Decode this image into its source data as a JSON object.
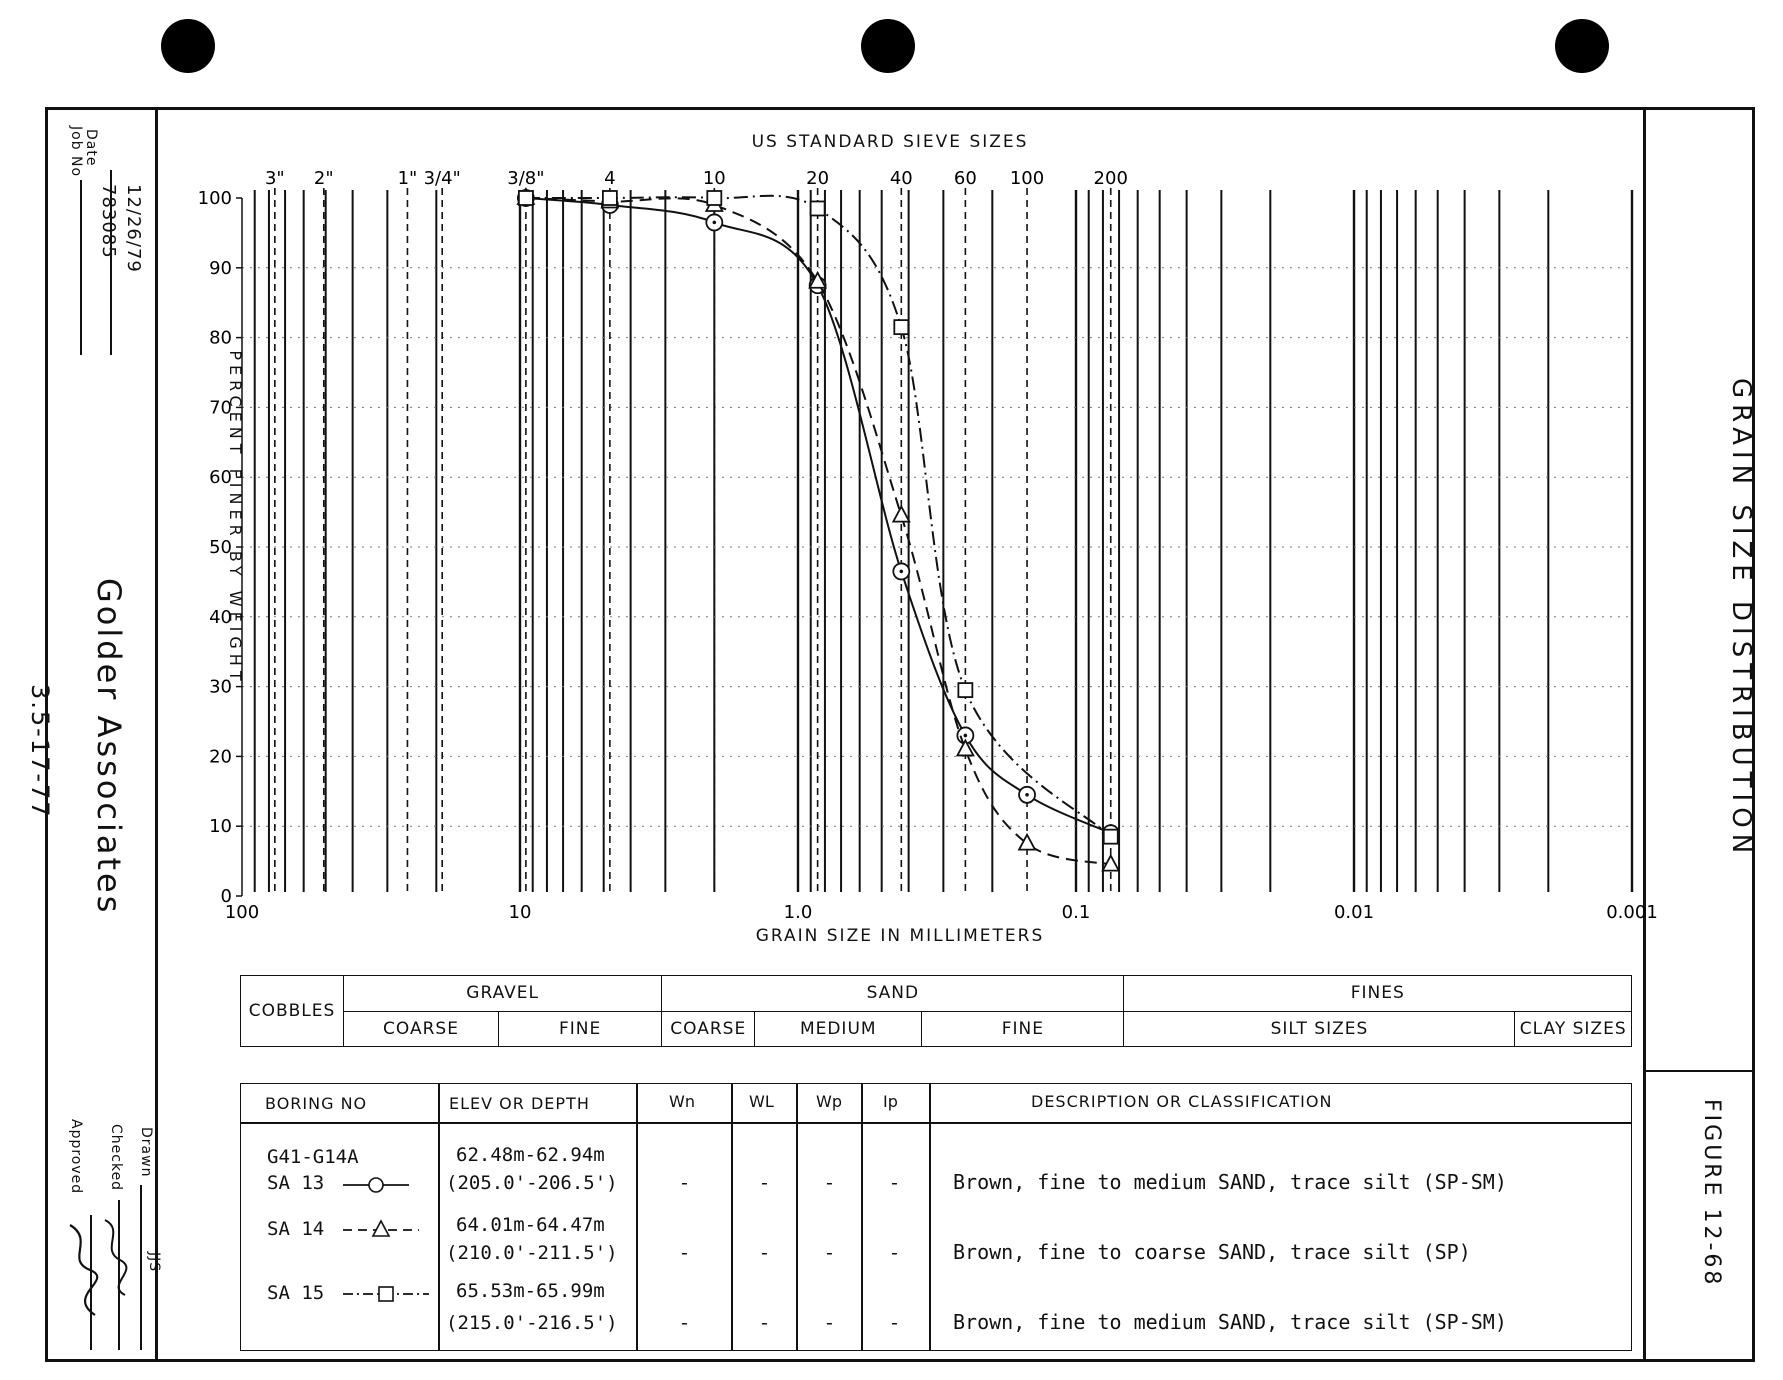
{
  "chart_data": {
    "type": "line",
    "title": "GRAIN SIZE DISTRIBUTION",
    "xlabel": "GRAIN SIZE IN MILLIMETERS",
    "ylabel": "PERCENT FINER BY WEIGHT",
    "top_axis_label": "US STANDARD SIEVE SIZES",
    "x_scale": "log",
    "x_reversed": true,
    "xlim": [
      100,
      0.001
    ],
    "ylim": [
      0,
      100
    ],
    "x_tick_labels": [
      "100",
      "10",
      "1.0",
      "0.1",
      "0.01",
      "0.001"
    ],
    "x_tick_values": [
      100,
      10,
      1,
      0.1,
      0.01,
      0.001
    ],
    "y_tick_labels": [
      "0",
      "10",
      "20",
      "30",
      "40",
      "50",
      "60",
      "70",
      "80",
      "90",
      "100"
    ],
    "sieve_labels": [
      {
        "label": "3\"",
        "mm": 76.2
      },
      {
        "label": "2\"",
        "mm": 50.8
      },
      {
        "label": "1\"",
        "mm": 25.4
      },
      {
        "label": "3/4\"",
        "mm": 19.05
      },
      {
        "label": "3/8\"",
        "mm": 9.525
      },
      {
        "label": "4",
        "mm": 4.75
      },
      {
        "label": "10",
        "mm": 2.0
      },
      {
        "label": "20",
        "mm": 0.85
      },
      {
        "label": "40",
        "mm": 0.425
      },
      {
        "label": "60",
        "mm": 0.25
      },
      {
        "label": "100",
        "mm": 0.15
      },
      {
        "label": "200",
        "mm": 0.075
      }
    ],
    "series": [
      {
        "name": "SA 13",
        "marker": "circle",
        "line": "solid",
        "x": [
          9.525,
          4.75,
          2.0,
          0.85,
          0.425,
          0.25,
          0.15,
          0.075
        ],
        "y": [
          100,
          99,
          96.5,
          87.5,
          46.5,
          23,
          14.5,
          9
        ]
      },
      {
        "name": "SA 14",
        "marker": "triangle",
        "line": "dashed",
        "x": [
          9.525,
          4.75,
          2.0,
          0.85,
          0.425,
          0.25,
          0.15,
          0.075
        ],
        "y": [
          100,
          99.5,
          99,
          88,
          54.5,
          21,
          7.5,
          4.5
        ]
      },
      {
        "name": "SA 15",
        "marker": "square",
        "line": "dash-dot",
        "x": [
          9.525,
          4.75,
          2.0,
          0.85,
          0.425,
          0.25,
          0.075
        ],
        "y": [
          100,
          100,
          100,
          98.5,
          81.5,
          29.5,
          8.5
        ]
      }
    ],
    "grid": true
  },
  "page": {
    "side_left": {
      "date_label": "Date",
      "date_value": "12/26/79",
      "job_label": "Job No",
      "job_value": "783085",
      "company": "Golder Associates",
      "page_ref": "3.5-17-77",
      "drawn_label": "Drawn",
      "drawn_value": "JJS",
      "checked_label": "Checked",
      "approved_label": "Approved"
    },
    "side_right": {
      "title": "GRAIN SIZE DISTRIBUTION",
      "figure": "FIGURE 12-68"
    },
    "classification": {
      "cobbles": "COBBLES",
      "gravel": "GRAVEL",
      "gravel_coarse": "COARSE",
      "gravel_fine": "FINE",
      "sand": "SAND",
      "sand_coarse": "COARSE",
      "sand_medium": "MEDIUM",
      "sand_fine": "FINE",
      "fines": "FINES",
      "silt": "SILT SIZES",
      "clay": "CLAY SIZES"
    },
    "samples_table": {
      "headers": {
        "boring": "BORING NO",
        "elev": "ELEV OR DEPTH",
        "wn": "Wn",
        "wl": "WL",
        "wp": "Wp",
        "ip": "Ip",
        "desc": "DESCRIPTION OR CLASSIFICATION"
      },
      "boring_no": "G41-G14A",
      "rows": [
        {
          "sample": "SA 13",
          "elev": "62.48m-62.94m",
          "depth": "(205.0'-206.5')",
          "wn": "-",
          "wl": "-",
          "wp": "-",
          "ip": "-",
          "desc": "Brown, fine to medium SAND, trace silt (SP-SM)"
        },
        {
          "sample": "SA 14",
          "elev": "64.01m-64.47m",
          "depth": "(210.0'-211.5')",
          "wn": "-",
          "wl": "-",
          "wp": "-",
          "ip": "-",
          "desc": "Brown, fine to coarse SAND, trace silt  (SP)"
        },
        {
          "sample": "SA 15",
          "elev": "65.53m-65.99m",
          "depth": "(215.0'-216.5')",
          "wn": "-",
          "wl": "-",
          "wp": "-",
          "ip": "-",
          "desc": "Brown, fine to medium SAND, trace silt  (SP-SM)"
        }
      ]
    }
  }
}
